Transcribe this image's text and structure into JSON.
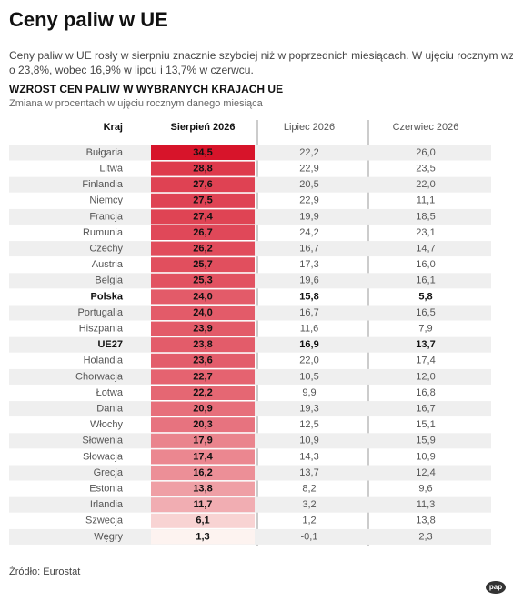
{
  "header": {
    "title": "Ceny paliw w UE",
    "intro": [
      "Ceny paliw w UE rosły w sierpniu znacznie szybciej niż w poprzednich miesiącach. W ujęciu rocznym wzrosły",
      "o 23,8%, wobec 16,9% w lipcu i 13,7% w czerwcu."
    ],
    "subtitle": "WZROST CEN PALIW W WYBRANYCH KRAJACH UE",
    "note": "Zmiana w procentach w ujęciu rocznym danego miesiąca"
  },
  "table": {
    "columns": [
      "Kraj",
      "Sierpień 2026",
      "Lipiec 2026",
      "Czerwiec 2026"
    ],
    "rows": [
      {
        "cells": [
          "Bułgaria",
          "34,5",
          "22,2",
          "26,0"
        ]
      },
      {
        "cells": [
          "Litwa",
          "28,8",
          "22,9",
          "23,5"
        ]
      },
      {
        "cells": [
          "Finlandia",
          "27,6",
          "20,5",
          "22,0"
        ]
      },
      {
        "cells": [
          "Niemcy",
          "27,5",
          "22,9",
          "11,1"
        ]
      },
      {
        "cells": [
          "Francja",
          "27,4",
          "19,9",
          "18,5"
        ]
      },
      {
        "cells": [
          "Rumunia",
          "26,7",
          "24,2",
          "23,1"
        ]
      },
      {
        "cells": [
          "Czechy",
          "26,2",
          "16,7",
          "14,7"
        ]
      },
      {
        "cells": [
          "Austria",
          "25,7",
          "17,3",
          "16,0"
        ]
      },
      {
        "cells": [
          "Belgia",
          "25,3",
          "19,6",
          "16,1"
        ]
      },
      {
        "cells": [
          "Polska",
          "24,0",
          "15,8",
          "5,8"
        ],
        "bold": true
      },
      {
        "cells": [
          "Portugalia",
          "24,0",
          "16,7",
          "16,5"
        ]
      },
      {
        "cells": [
          "Hiszpania",
          "23,9",
          "11,6",
          "7,9"
        ]
      },
      {
        "cells": [
          "UE27",
          "23,8",
          "16,9",
          "13,7"
        ],
        "bold": true
      },
      {
        "cells": [
          "Holandia",
          "23,6",
          "22,0",
          "17,4"
        ]
      },
      {
        "cells": [
          "Chorwacja",
          "22,7",
          "10,5",
          "12,0"
        ]
      },
      {
        "cells": [
          "Łotwa",
          "22,2",
          "9,9",
          "16,8"
        ]
      },
      {
        "cells": [
          "Dania",
          "20,9",
          "19,3",
          "16,7"
        ]
      },
      {
        "cells": [
          "Włochy",
          "20,3",
          "12,5",
          "15,1"
        ]
      },
      {
        "cells": [
          "Słowenia",
          "17,9",
          "10,9",
          "15,9"
        ]
      },
      {
        "cells": [
          "Słowacja",
          "17,4",
          "14,3",
          "10,9"
        ]
      },
      {
        "cells": [
          "Grecja",
          "16,2",
          "13,7",
          "12,4"
        ]
      },
      {
        "cells": [
          "Estonia",
          "13,8",
          "8,2",
          "9,6"
        ]
      },
      {
        "cells": [
          "Irlandia",
          "11,7",
          "3,2",
          "11,3"
        ]
      },
      {
        "cells": [
          "Szwecja",
          "6,1",
          "1,2",
          "13,8"
        ]
      },
      {
        "cells": [
          "Węgry",
          "1,3",
          "-0,1",
          "2,3"
        ]
      }
    ]
  },
  "footer": {
    "source": "Źródło: Eurostat",
    "logo": "pap"
  }
}
